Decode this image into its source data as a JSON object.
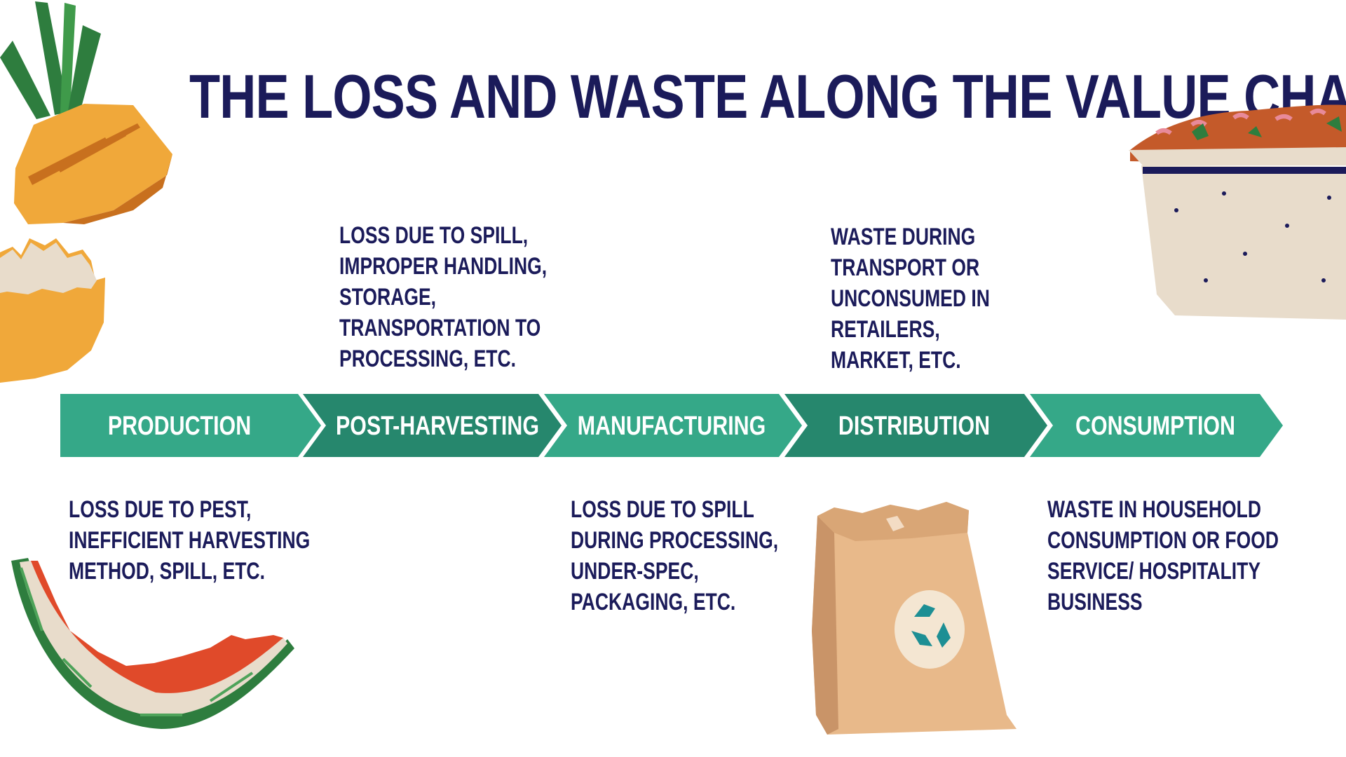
{
  "title": "THE LOSS AND WASTE ALONG THE VALUE CHAIN",
  "stages": [
    {
      "label": "PRODUCTION",
      "color": "#35a888"
    },
    {
      "label": "POST-HARVESTING",
      "color": "#26876d"
    },
    {
      "label": "MANUFACTURING",
      "color": "#35a888"
    },
    {
      "label": "DISTRIBUTION",
      "color": "#26876d"
    },
    {
      "label": "CONSUMPTION",
      "color": "#35a888"
    }
  ],
  "notes": {
    "production": [
      "LOSS DUE TO PEST,",
      "INEFFICIENT HARVESTING",
      "METHOD, SPILL, ETC."
    ],
    "post_harvesting": [
      "LOSS DUE TO SPILL,",
      "IMPROPER HANDLING,",
      "STORAGE,",
      "TRANSPORTATION TO",
      "PROCESSING, ETC."
    ],
    "manufacturing": [
      "LOSS DUE TO SPILL",
      "DURING PROCESSING,",
      "UNDER-SPEC,",
      "PACKAGING, ETC."
    ],
    "distribution": [
      "WASTE DURING",
      "TRANSPORT OR",
      "UNCONSUMED IN",
      "RETAILERS,",
      "MARKET, ETC."
    ],
    "consumption": [
      "WASTE IN HOUSEHOLD",
      "CONSUMPTION OR FOOD",
      "SERVICE/ HOSPITALITY",
      "BUSINESS"
    ]
  },
  "colors": {
    "title": "#1b1b5a",
    "light_green": "#35a888",
    "dark_green": "#26876d"
  },
  "illustrations": [
    "pineapple-icon",
    "eggshell-icon",
    "watermelon-rind-icon",
    "paper-bag-recycle-icon",
    "food-tray-icon"
  ]
}
